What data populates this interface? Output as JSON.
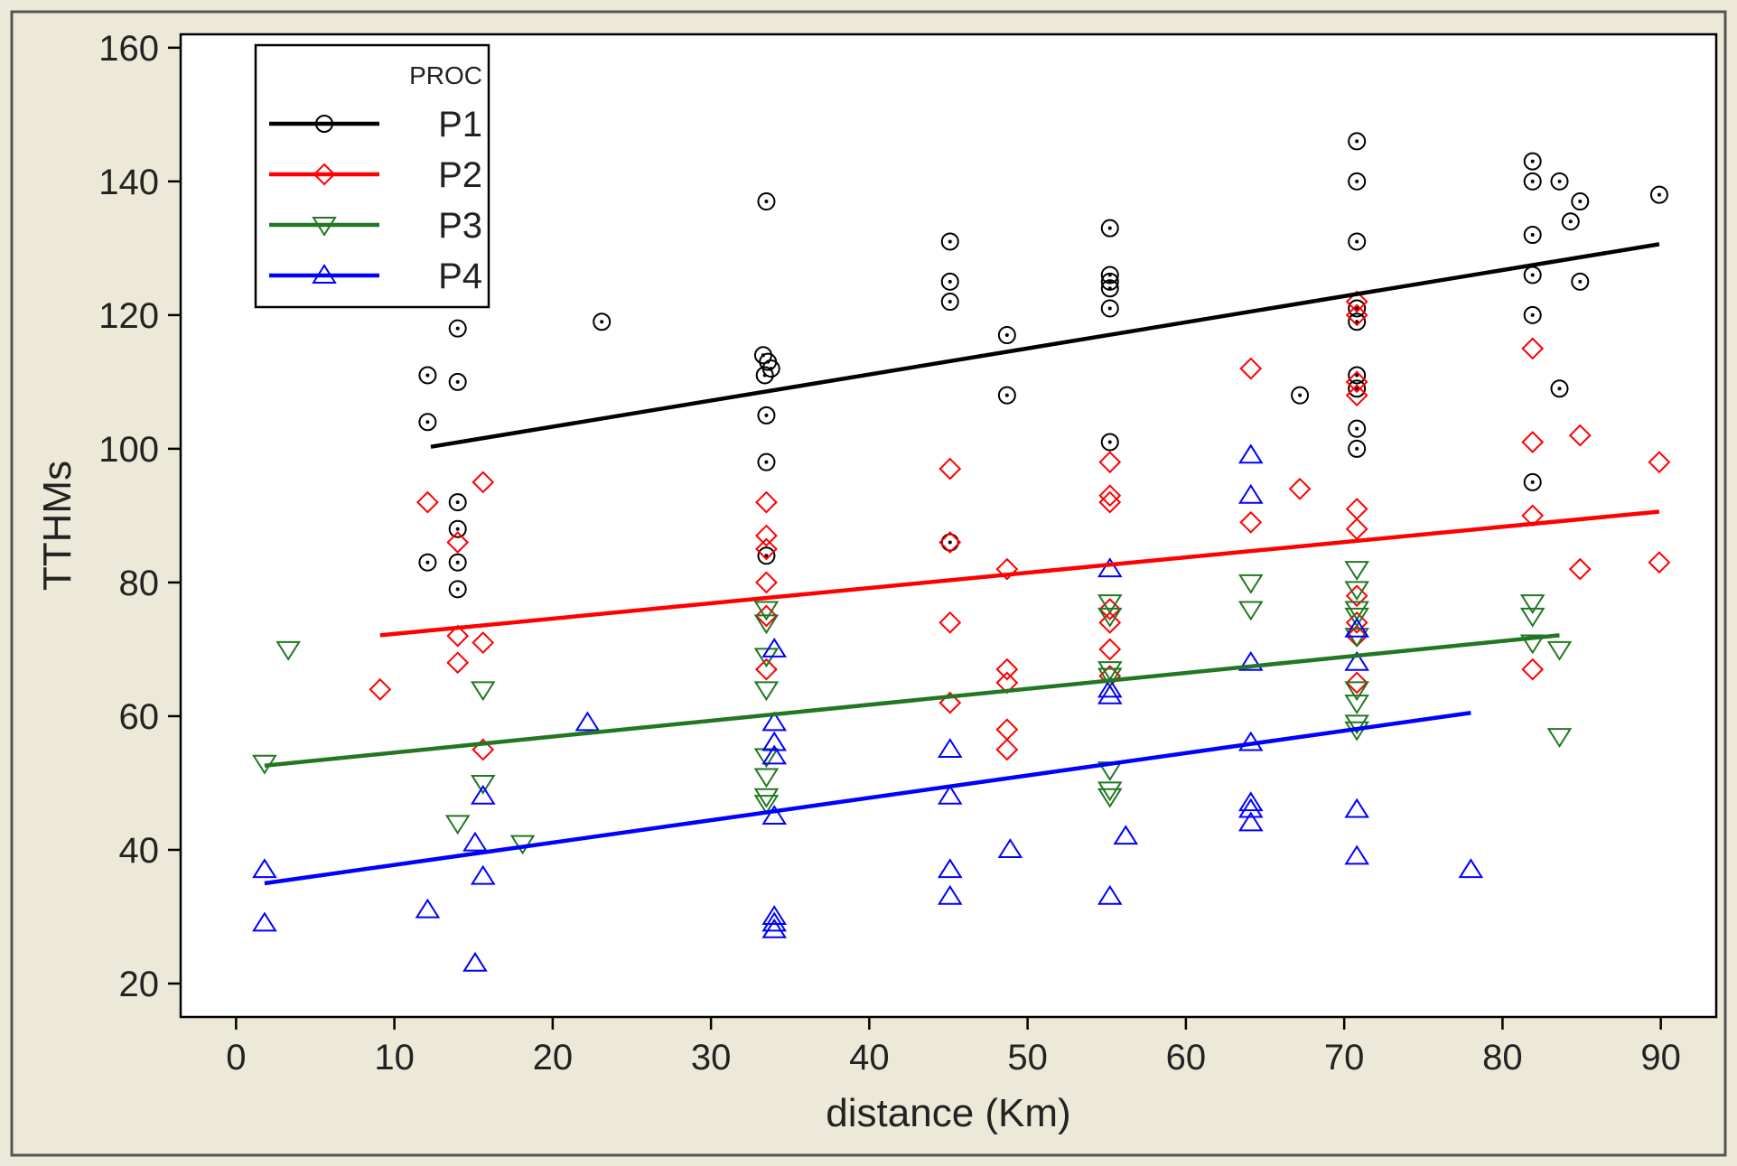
{
  "chart_data": {
    "type": "scatter",
    "xlabel": "distance (Km)",
    "ylabel": "TTHMs",
    "xlim": [
      -3.5,
      93.5
    ],
    "ylim": [
      15,
      162
    ],
    "xticks": [
      0,
      10,
      20,
      30,
      40,
      50,
      60,
      70,
      80,
      90
    ],
    "yticks": [
      20,
      40,
      60,
      80,
      100,
      120,
      140,
      160
    ],
    "grid": false,
    "legend": {
      "title": "PROC",
      "position": "top-left"
    },
    "colors": {
      "frame_bg": "#ece9d8",
      "plot_bg": "#ffffff"
    },
    "series": [
      {
        "name": "P1",
        "color": "#000000",
        "marker": "circle",
        "fit": [
          [
            12.3,
            100.3
          ],
          [
            89.9,
            130.6
          ]
        ],
        "points": [
          [
            12.1,
            104
          ],
          [
            12.1,
            111
          ],
          [
            12.1,
            83
          ],
          [
            14,
            118
          ],
          [
            14,
            110
          ],
          [
            14,
            92
          ],
          [
            14,
            88
          ],
          [
            14,
            83
          ],
          [
            14,
            79
          ],
          [
            23.1,
            119
          ],
          [
            33.3,
            114
          ],
          [
            33.6,
            113
          ],
          [
            33.4,
            111
          ],
          [
            33.8,
            112
          ],
          [
            33.5,
            105
          ],
          [
            33.5,
            98
          ],
          [
            33.5,
            84
          ],
          [
            33.5,
            137
          ],
          [
            45.1,
            131
          ],
          [
            45.1,
            125
          ],
          [
            45.1,
            122
          ],
          [
            45.1,
            86
          ],
          [
            48.7,
            117
          ],
          [
            48.7,
            108
          ],
          [
            55.2,
            133
          ],
          [
            55.2,
            126
          ],
          [
            55.2,
            125
          ],
          [
            55.2,
            124
          ],
          [
            55.2,
            121
          ],
          [
            55.2,
            101
          ],
          [
            67.2,
            108
          ],
          [
            70.8,
            146
          ],
          [
            70.8,
            140
          ],
          [
            70.8,
            131
          ],
          [
            70.8,
            121
          ],
          [
            70.8,
            119
          ],
          [
            70.8,
            111
          ],
          [
            70.8,
            109
          ],
          [
            70.8,
            103
          ],
          [
            70.8,
            100
          ],
          [
            81.9,
            143
          ],
          [
            81.9,
            140
          ],
          [
            81.9,
            132
          ],
          [
            81.9,
            126
          ],
          [
            81.9,
            120
          ],
          [
            81.9,
            95
          ],
          [
            83.6,
            140
          ],
          [
            84.3,
            134
          ],
          [
            84.9,
            137
          ],
          [
            84.9,
            125
          ],
          [
            83.6,
            109
          ],
          [
            89.9,
            138
          ]
        ]
      },
      {
        "name": "P2",
        "color": "#ff0000",
        "marker": "diamond",
        "fit": [
          [
            9.1,
            72.1
          ],
          [
            89.9,
            90.6
          ]
        ],
        "points": [
          [
            9.1,
            64
          ],
          [
            12.1,
            92
          ],
          [
            14,
            86
          ],
          [
            14,
            72
          ],
          [
            14,
            68
          ],
          [
            15.6,
            95
          ],
          [
            15.6,
            71
          ],
          [
            15.6,
            55
          ],
          [
            33.5,
            92
          ],
          [
            33.5,
            87
          ],
          [
            33.5,
            85
          ],
          [
            33.5,
            80
          ],
          [
            33.5,
            75
          ],
          [
            33.5,
            67
          ],
          [
            45.1,
            97
          ],
          [
            45.1,
            86
          ],
          [
            45.1,
            74
          ],
          [
            45.1,
            62
          ],
          [
            48.7,
            82
          ],
          [
            48.7,
            67
          ],
          [
            48.7,
            65
          ],
          [
            48.7,
            58
          ],
          [
            48.7,
            55
          ],
          [
            55.2,
            98
          ],
          [
            55.2,
            93
          ],
          [
            55.2,
            92
          ],
          [
            55.2,
            76
          ],
          [
            55.2,
            74
          ],
          [
            55.2,
            70
          ],
          [
            55.2,
            66
          ],
          [
            64.1,
            112
          ],
          [
            64.1,
            89
          ],
          [
            67.2,
            94
          ],
          [
            70.8,
            122
          ],
          [
            70.8,
            120
          ],
          [
            70.8,
            110
          ],
          [
            70.8,
            108
          ],
          [
            70.8,
            91
          ],
          [
            70.8,
            88
          ],
          [
            70.8,
            78
          ],
          [
            70.8,
            74
          ],
          [
            70.8,
            72
          ],
          [
            70.8,
            65
          ],
          [
            81.9,
            115
          ],
          [
            81.9,
            101
          ],
          [
            81.9,
            90
          ],
          [
            81.9,
            67
          ],
          [
            84.9,
            102
          ],
          [
            84.9,
            82
          ],
          [
            89.9,
            98
          ],
          [
            89.9,
            83
          ]
        ]
      },
      {
        "name": "P3",
        "color": "#227722",
        "marker": "triangle-down",
        "fit": [
          [
            1.8,
            52.6
          ],
          [
            83.6,
            72.1
          ]
        ],
        "points": [
          [
            1.8,
            53
          ],
          [
            3.3,
            70
          ],
          [
            14,
            44
          ],
          [
            15.6,
            64
          ],
          [
            15.6,
            50
          ],
          [
            18.1,
            41
          ],
          [
            33.5,
            76
          ],
          [
            33.5,
            74
          ],
          [
            33.5,
            69
          ],
          [
            33.5,
            64
          ],
          [
            33.5,
            54
          ],
          [
            33.5,
            51
          ],
          [
            33.5,
            48
          ],
          [
            33.5,
            47
          ],
          [
            55.2,
            77
          ],
          [
            55.2,
            75
          ],
          [
            55.2,
            67
          ],
          [
            55.2,
            66
          ],
          [
            55.2,
            52
          ],
          [
            55.2,
            49
          ],
          [
            55.2,
            48
          ],
          [
            64.1,
            80
          ],
          [
            64.1,
            76
          ],
          [
            70.8,
            82
          ],
          [
            70.8,
            79
          ],
          [
            70.8,
            76
          ],
          [
            70.8,
            75
          ],
          [
            70.8,
            72
          ],
          [
            70.8,
            64
          ],
          [
            70.8,
            62
          ],
          [
            70.8,
            59
          ],
          [
            70.8,
            58
          ],
          [
            81.9,
            77
          ],
          [
            81.9,
            75
          ],
          [
            81.9,
            71
          ],
          [
            83.6,
            70
          ],
          [
            83.6,
            57
          ]
        ]
      },
      {
        "name": "P4",
        "color": "#0000ff",
        "marker": "triangle-up",
        "fit": [
          [
            1.8,
            35.0
          ],
          [
            78,
            60.5
          ]
        ],
        "points": [
          [
            1.8,
            37
          ],
          [
            1.8,
            29
          ],
          [
            12.1,
            31
          ],
          [
            15.1,
            41
          ],
          [
            15.1,
            23
          ],
          [
            15.6,
            48
          ],
          [
            15.6,
            36
          ],
          [
            22.2,
            59
          ],
          [
            34,
            70
          ],
          [
            34,
            59
          ],
          [
            34,
            56
          ],
          [
            34,
            54
          ],
          [
            34,
            45
          ],
          [
            34,
            30
          ],
          [
            34,
            29
          ],
          [
            34,
            28
          ],
          [
            45.1,
            55
          ],
          [
            45.1,
            48
          ],
          [
            45.1,
            37
          ],
          [
            45.1,
            33
          ],
          [
            48.9,
            40
          ],
          [
            55.2,
            82
          ],
          [
            55.2,
            64
          ],
          [
            55.2,
            63
          ],
          [
            55.2,
            33
          ],
          [
            56.2,
            42
          ],
          [
            64.1,
            99
          ],
          [
            64.1,
            93
          ],
          [
            64.1,
            68
          ],
          [
            64.1,
            56
          ],
          [
            64.1,
            47
          ],
          [
            64.1,
            46
          ],
          [
            64.1,
            44
          ],
          [
            70.8,
            73
          ],
          [
            70.8,
            68
          ],
          [
            70.8,
            46
          ],
          [
            70.8,
            39
          ],
          [
            78,
            37
          ]
        ]
      }
    ]
  }
}
